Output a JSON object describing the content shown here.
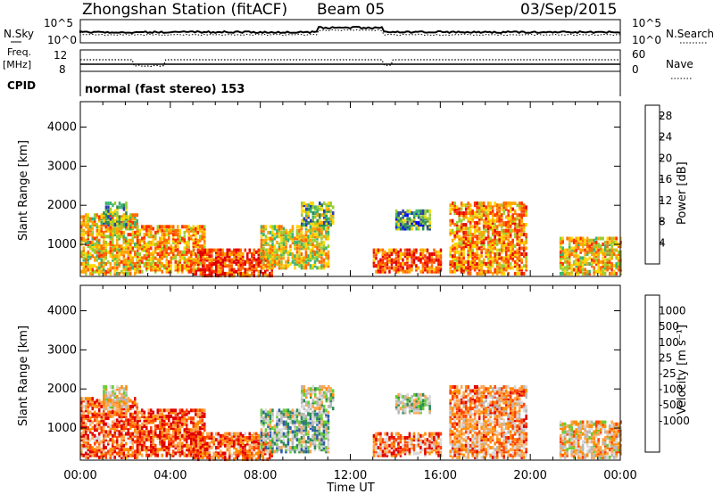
{
  "header": {
    "station": "Zhongshan Station (fitACF)",
    "beam": "Beam 05",
    "date": "03/Sep/2015"
  },
  "top_panels": {
    "nsky_label": "N.Sky",
    "nsky_ticks": [
      "10^5",
      "10^0"
    ],
    "nsearch_label": "N.Search",
    "nsearch_ticks": [
      "10^5",
      "10^0"
    ],
    "freq_label": "Freq.",
    "freq_unit": "[MHz]",
    "freq_ticks": [
      "12",
      "8"
    ],
    "nave_label": "Nave",
    "nave_ticks": [
      "60",
      "0"
    ],
    "cpid_label": "CPID",
    "cpid_text": "normal (fast stereo) 153"
  },
  "colors": {
    "power": [
      "#0000ff",
      "#2a3fa8",
      "#2e8b57",
      "#3cb371",
      "#9acd32",
      "#ffd700",
      "#ffa500",
      "#ff6a00",
      "#ff3000",
      "#e00000"
    ],
    "velocity": [
      "#e00000",
      "#ff4500",
      "#ff8c00",
      "#ffa54f",
      "#d8d8d8",
      "#b8b8b8",
      "#66cc33",
      "#2e8b57",
      "#2a5caa",
      "#1a2fbf"
    ]
  },
  "chart_data": [
    {
      "type": "heatmap",
      "name": "power",
      "xlabel": "",
      "ylabel": "Slant Range [km]",
      "x_ticks": [
        "00:00",
        "04:00",
        "08:00",
        "12:00",
        "16:00",
        "20:00",
        "00:00"
      ],
      "y_ticks": [
        1000,
        2000,
        3000,
        4000
      ],
      "ylim": [
        180,
        4650
      ],
      "xlim_hours": [
        0,
        24
      ],
      "colorbar": {
        "label": "Power [dB]",
        "ticks": [
          4,
          8,
          12,
          16,
          20,
          24,
          28
        ],
        "range": [
          0,
          30
        ]
      },
      "echo_regions": [
        {
          "t0": 0.0,
          "t1": 2.5,
          "r0": 250,
          "r1": 1800,
          "level": 0.6
        },
        {
          "t0": 1.0,
          "t1": 2.0,
          "r0": 1500,
          "r1": 2100,
          "level": 0.35
        },
        {
          "t0": 2.5,
          "t1": 5.5,
          "r0": 300,
          "r1": 1500,
          "level": 0.65
        },
        {
          "t0": 5.0,
          "t1": 8.5,
          "r0": 200,
          "r1": 900,
          "level": 0.85
        },
        {
          "t0": 8.0,
          "t1": 11.0,
          "r0": 400,
          "r1": 1500,
          "level": 0.55
        },
        {
          "t0": 9.8,
          "t1": 11.2,
          "r0": 1500,
          "r1": 2100,
          "level": 0.4
        },
        {
          "t0": 13.0,
          "t1": 16.0,
          "r0": 300,
          "r1": 900,
          "level": 0.8
        },
        {
          "t0": 14.0,
          "t1": 15.5,
          "r0": 1400,
          "r1": 1900,
          "level": 0.3
        },
        {
          "t0": 16.4,
          "t1": 19.8,
          "r0": 250,
          "r1": 2100,
          "level": 0.7
        },
        {
          "t0": 21.3,
          "t1": 24.0,
          "r0": 250,
          "r1": 1200,
          "level": 0.6
        }
      ]
    },
    {
      "type": "heatmap",
      "name": "velocity",
      "xlabel": "Time UT",
      "ylabel": "Slant Range [km]",
      "x_ticks": [
        "00:00",
        "04:00",
        "08:00",
        "12:00",
        "16:00",
        "20:00",
        "00:00"
      ],
      "y_ticks": [
        1000,
        2000,
        3000,
        4000
      ],
      "ylim": [
        180,
        4650
      ],
      "xlim_hours": [
        0,
        24
      ],
      "colorbar": {
        "label": "Velocity [m s⁻¹]",
        "ticks": [
          "1000",
          "500",
          "100",
          "25",
          "-25",
          "-100",
          "-500",
          "-1000"
        ]
      },
      "echo_regions": [
        {
          "t0": 0.0,
          "t1": 2.5,
          "r0": 250,
          "r1": 1800,
          "level": 0.2
        },
        {
          "t0": 1.0,
          "t1": 2.0,
          "r0": 1500,
          "r1": 2100,
          "level": 0.45
        },
        {
          "t0": 2.5,
          "t1": 5.5,
          "r0": 300,
          "r1": 1500,
          "level": 0.15
        },
        {
          "t0": 5.0,
          "t1": 8.5,
          "r0": 200,
          "r1": 900,
          "level": 0.2
        },
        {
          "t0": 8.0,
          "t1": 11.0,
          "r0": 400,
          "r1": 1500,
          "level": 0.6
        },
        {
          "t0": 9.8,
          "t1": 11.2,
          "r0": 1500,
          "r1": 2100,
          "level": 0.5
        },
        {
          "t0": 13.0,
          "t1": 16.0,
          "r0": 300,
          "r1": 900,
          "level": 0.25
        },
        {
          "t0": 14.0,
          "t1": 15.5,
          "r0": 1400,
          "r1": 1900,
          "level": 0.55
        },
        {
          "t0": 16.4,
          "t1": 19.8,
          "r0": 250,
          "r1": 2100,
          "level": 0.3
        },
        {
          "t0": 21.3,
          "t1": 24.0,
          "r0": 250,
          "r1": 1200,
          "level": 0.4
        }
      ]
    }
  ]
}
